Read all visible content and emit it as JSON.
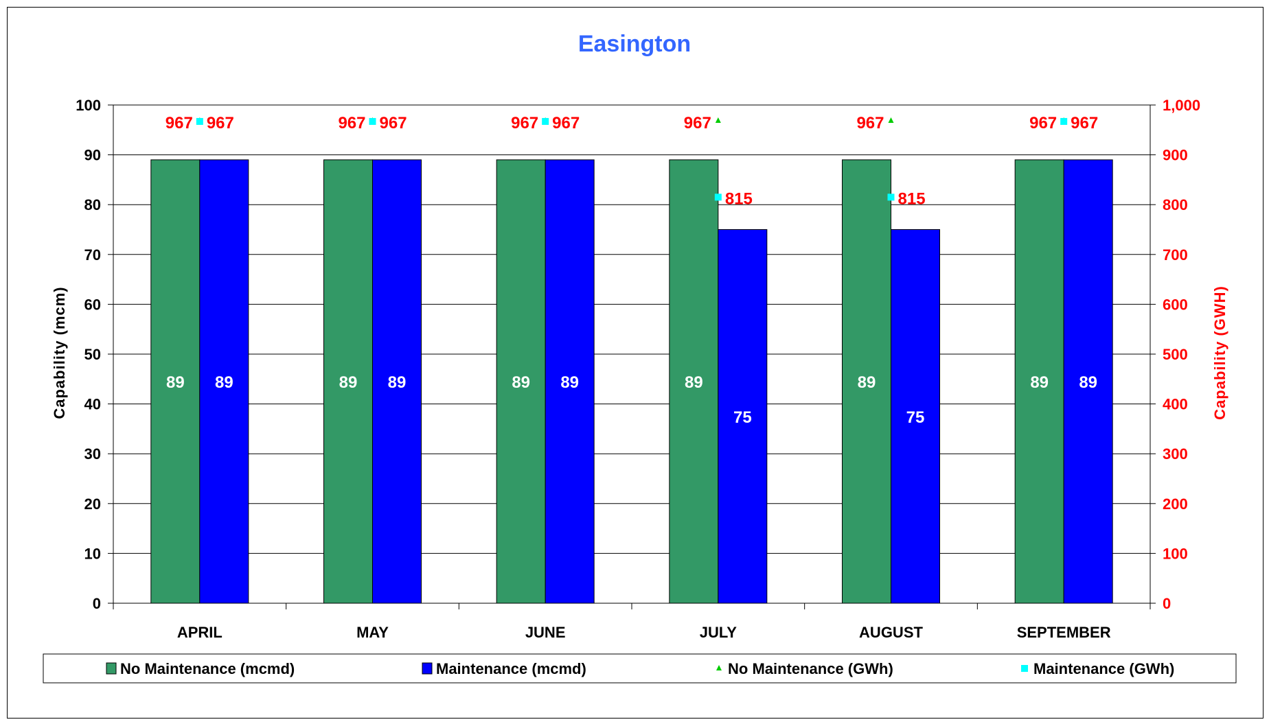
{
  "chart_data": {
    "type": "bar",
    "title": "Easington",
    "categories": [
      "APRIL",
      "MAY",
      "JUNE",
      "JULY",
      "AUGUST",
      "SEPTEMBER"
    ],
    "ylabel": "Capability (mcm)",
    "y2label": "Capability (GWH)",
    "ylim": [
      0,
      100
    ],
    "y2lim": [
      0,
      1000
    ],
    "yticks": [
      "0",
      "10",
      "20",
      "30",
      "40",
      "50",
      "60",
      "70",
      "80",
      "90",
      "100"
    ],
    "y2ticks": [
      "0",
      "100",
      "200",
      "300",
      "400",
      "500",
      "600",
      "700",
      "800",
      "900",
      "1,000"
    ],
    "grid": true,
    "legend_position": "bottom",
    "series": [
      {
        "name": "No Maintenance (mcmd)",
        "kind": "bar",
        "axis": "left",
        "color": "#339966",
        "values": [
          89,
          89,
          89,
          89,
          89,
          89
        ],
        "labels": [
          "89",
          "89",
          "89",
          "89",
          "89",
          "89"
        ]
      },
      {
        "name": "Maintenance (mcmd)",
        "kind": "bar",
        "axis": "left",
        "color": "#0000ff",
        "values": [
          89,
          89,
          89,
          75,
          75,
          89
        ],
        "labels": [
          "89",
          "89",
          "89",
          "75",
          "75",
          "89"
        ]
      },
      {
        "name": "No Maintenance (GWh)",
        "kind": "marker",
        "marker": "triangle",
        "axis": "right",
        "color": "#00cc00",
        "values": [
          967,
          967,
          967,
          967,
          967,
          967
        ],
        "labels": [
          "967",
          "967",
          "967",
          "967",
          "967",
          "967"
        ]
      },
      {
        "name": "Maintenance (GWh)",
        "kind": "marker",
        "marker": "square",
        "axis": "right",
        "color": "#00ffff",
        "values": [
          967,
          967,
          967,
          815,
          815,
          967
        ],
        "labels": [
          "967",
          "967",
          "967",
          "815",
          "815",
          "967"
        ]
      }
    ],
    "colors": {
      "title": "#3366ff",
      "right_axis": "#ff0000",
      "point_labels": "#ff0000",
      "axis_text": "#000000"
    }
  }
}
